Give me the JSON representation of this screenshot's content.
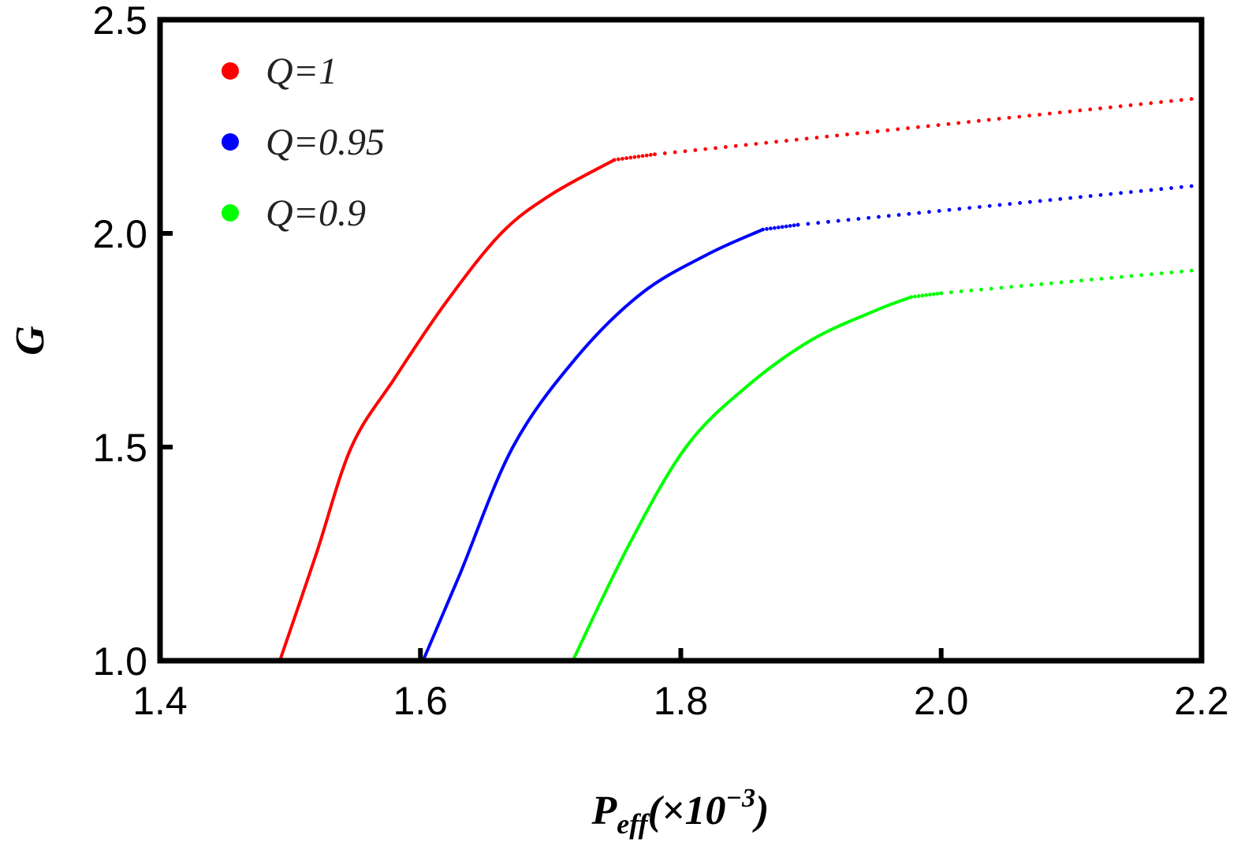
{
  "chart_data": {
    "type": "line",
    "title": "",
    "xlabel": "P_eff(×10^-3)",
    "xlabel_main": "P",
    "xlabel_sub": "eff",
    "xlabel_rest": "(×10",
    "xlabel_sup": "−3",
    "xlabel_close": ")",
    "ylabel": "G",
    "xlim": [
      1.4,
      2.2
    ],
    "ylim": [
      1.0,
      2.5
    ],
    "xticks": [
      "1.4",
      "1.6",
      "1.8",
      "2.0",
      "2.2"
    ],
    "xtick_values": [
      1.4,
      1.6,
      1.8,
      2.0,
      2.2
    ],
    "yticks": [
      "1.0",
      "1.5",
      "2.0",
      "2.5"
    ],
    "ytick_values": [
      1.0,
      1.5,
      2.0,
      2.5
    ],
    "grid": false,
    "legend_position": "top-left",
    "series": [
      {
        "name": "Q=1",
        "color": "#ff0000",
        "solid": [
          [
            1.492,
            1.0
          ],
          [
            1.52,
            1.25
          ],
          [
            1.547,
            1.5
          ],
          [
            1.58,
            1.66
          ],
          [
            1.62,
            1.84
          ],
          [
            1.662,
            2.0
          ],
          [
            1.7,
            2.09
          ],
          [
            1.749,
            2.172
          ]
        ],
        "dotted": [
          [
            1.749,
            2.172
          ],
          [
            1.78,
            2.185
          ],
          [
            2.2,
            2.317
          ]
        ]
      },
      {
        "name": "Q=0.95",
        "color": "#0000ff",
        "solid": [
          [
            1.602,
            1.0
          ],
          [
            1.63,
            1.2
          ],
          [
            1.671,
            1.5
          ],
          [
            1.72,
            1.71
          ],
          [
            1.77,
            1.86
          ],
          [
            1.82,
            1.95
          ],
          [
            1.863,
            2.009
          ]
        ],
        "dotted": [
          [
            1.863,
            2.009
          ],
          [
            1.89,
            2.02
          ],
          [
            2.2,
            2.113
          ]
        ]
      },
      {
        "name": "Q=0.9",
        "color": "#00ff00",
        "solid": [
          [
            1.717,
            1.0
          ],
          [
            1.76,
            1.27
          ],
          [
            1.804,
            1.5
          ],
          [
            1.85,
            1.64
          ],
          [
            1.9,
            1.75
          ],
          [
            1.95,
            1.82
          ],
          [
            1.977,
            1.851
          ]
        ],
        "dotted": [
          [
            1.977,
            1.851
          ],
          [
            2.0,
            1.86
          ],
          [
            2.2,
            1.915
          ]
        ]
      }
    ]
  }
}
